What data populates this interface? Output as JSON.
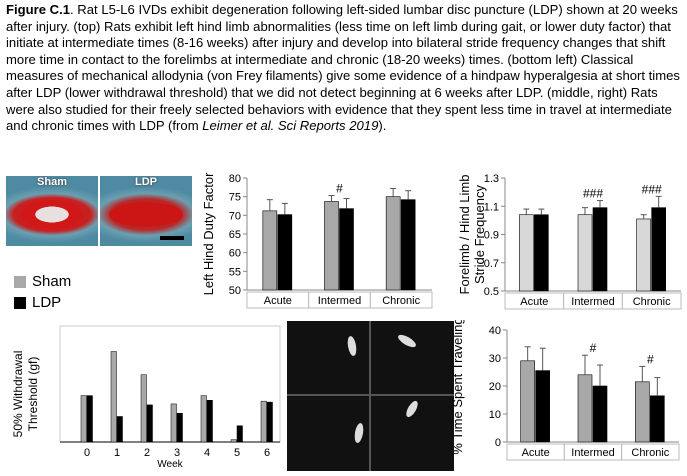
{
  "caption": {
    "fig_label": "Figure C.1",
    "p1": ". Rat L5-L6 IVDs exhibit degeneration following left-sided lumbar disc puncture (LDP) shown at 20 weeks after injury.  (top) Rats exhibit left hind limb abnormalities (less time on left limb during gait, or lower duty factor) that initiate at intermediate times (8-16 weeks) after injury and develop into bilateral stride frequency changes that shift more time in contact to the forelimbs at intermediate and chronic (18-20 weeks) times. (bottom left) Classical measures of mechanical allodynia (von Frey filaments) give some evidence of a hindpaw hyperalgesia at short times after LDP (lower withdrawal threshold) that we did not detect beginning at 6 weeks after LDP. (middle, right) Rats were also studied for their freely selected behaviors with evidence that they spent less time in travel at intermediate and chronic times with LDP (from ",
    "citation": "Leimer et al. Sci Reports 2019",
    "p2": ")."
  },
  "histology": {
    "sham_label": "Sham",
    "ldp_label": "LDP"
  },
  "legend": {
    "items": [
      {
        "label": "Sham",
        "color": "#a8a8a8"
      },
      {
        "label": "LDP",
        "color": "#000000"
      }
    ]
  },
  "chart_data": [
    {
      "type": "bar",
      "ylabel": "Left Hind Duty Factor",
      "categories": [
        "Acute",
        "Intermed",
        "Chronic"
      ],
      "ylim": [
        50,
        80
      ],
      "yticks": [
        "50",
        "55",
        "60",
        "65",
        "70",
        "75",
        "80"
      ],
      "series": [
        {
          "name": "Sham",
          "values": [
            71.2,
            73.7,
            75.0
          ],
          "errors": [
            3.0,
            1.6,
            2.2
          ],
          "color": "#a8a8a8"
        },
        {
          "name": "LDP",
          "values": [
            70.2,
            71.8,
            74.2
          ],
          "errors": [
            3.0,
            2.7,
            2.4
          ],
          "color": "#000000"
        }
      ],
      "annotations": [
        {
          "category": "Intermed",
          "text": "#"
        }
      ]
    },
    {
      "type": "bar",
      "ylabel": "Forelimb / Hind Limb Stride Frequency",
      "categories": [
        "Acute",
        "Intermed",
        "Chronic"
      ],
      "ylim": [
        0.5,
        1.3
      ],
      "yticks": [
        "0.5",
        "0.7",
        "0.9",
        "1.1",
        "1.3"
      ],
      "series": [
        {
          "name": "Sham",
          "values": [
            1.04,
            1.04,
            1.01
          ],
          "errors": [
            0.04,
            0.05,
            0.03
          ],
          "color": "#d8d8d8"
        },
        {
          "name": "LDP",
          "values": [
            1.04,
            1.09,
            1.09
          ],
          "errors": [
            0.04,
            0.05,
            0.08
          ],
          "color": "#000000"
        }
      ],
      "annotations": [
        {
          "category": "Intermed",
          "text": "###"
        },
        {
          "category": "Chronic",
          "text": "###"
        }
      ]
    },
    {
      "type": "bar",
      "ylabel": "50% Withdrawal Threshold (gf)",
      "xlabel": "Week",
      "categories": [
        "0",
        "1",
        "2",
        "3",
        "4",
        "5",
        "6"
      ],
      "ylim": [
        0,
        2.5
      ],
      "series": [
        {
          "name": "Sham",
          "values": [
            1.0,
            1.95,
            1.45,
            0.82,
            1.0,
            0.05,
            0.88
          ],
          "color": "#a8a8a8"
        },
        {
          "name": "LDP",
          "values": [
            1.0,
            0.55,
            0.8,
            0.62,
            0.9,
            0.35,
            0.86
          ],
          "color": "#000000"
        }
      ]
    },
    {
      "type": "bar",
      "ylabel": "% Time Spent Traveling",
      "categories": [
        "Acute",
        "Intermed",
        "Chronic"
      ],
      "ylim": [
        0,
        40
      ],
      "yticks": [
        "0",
        "10",
        "20",
        "30",
        "40"
      ],
      "series": [
        {
          "name": "Sham",
          "values": [
            29.0,
            24.0,
            21.5
          ],
          "errors": [
            5.0,
            7.0,
            5.5
          ],
          "color": "#a8a8a8"
        },
        {
          "name": "LDP",
          "values": [
            25.5,
            20.0,
            16.5
          ],
          "errors": [
            8.0,
            7.5,
            6.5
          ],
          "color": "#000000"
        }
      ],
      "annotations": [
        {
          "category": "Intermed",
          "text": "#"
        },
        {
          "category": "Chronic",
          "text": "#"
        }
      ]
    }
  ]
}
